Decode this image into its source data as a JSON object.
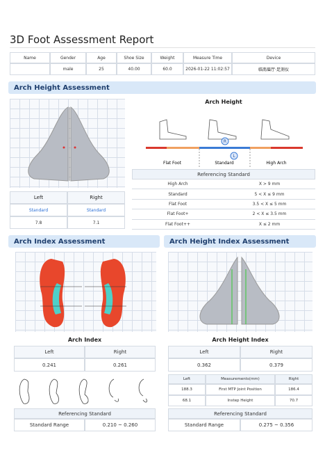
{
  "header": {
    "title": "3D Foot Assessment Report"
  },
  "info_table": {
    "columns": [
      "Name",
      "Gender",
      "Age",
      "Shoe Size",
      "Weight",
      "Measure Time",
      "Device"
    ],
    "row": [
      null,
      "male",
      "25",
      "40.00",
      "60.0",
      "2026-01-22 11:02:57",
      "临南眉厅·足测仪"
    ]
  },
  "arch_height": {
    "section": "Arch Height Assessment",
    "title": "Arch Height",
    "markers": [
      "R",
      "L"
    ],
    "categories": [
      "Flat Foot",
      "Standard",
      "High Arch"
    ],
    "table": {
      "headers": [
        "Left",
        "Right"
      ],
      "rows": [
        [
          "Standard",
          "Standard"
        ],
        [
          "7.8",
          "7.1"
        ]
      ]
    },
    "reference": {
      "title": "Referencing Standard",
      "rows": [
        [
          "High Arch",
          "X > 9 mm"
        ],
        [
          "Standard",
          "5 < X ≤ 9 mm"
        ],
        [
          "Flat Foot",
          "3.5 < X ≤ 5 mm"
        ],
        [
          "Flat Foot+",
          "2 < X ≤ 3.5 mm"
        ],
        [
          "Flat Foot++",
          "X ≤ 2 mm"
        ]
      ]
    }
  },
  "arch_index": {
    "section": "Arch Index Assessment",
    "title": "Arch Index",
    "table": {
      "headers": [
        "Left",
        "Right"
      ],
      "values": [
        "0.241",
        "0.261"
      ]
    },
    "reference": {
      "title": "Referencing Standard",
      "row": [
        "Standard Range",
        "0.210 ~ 0.260"
      ]
    }
  },
  "arch_height_index": {
    "section": "Arch Height Index Assessment",
    "title": "Arch Height Index",
    "table": {
      "headers": [
        "Left",
        "Right"
      ],
      "values": [
        "0.362",
        "0.379"
      ]
    },
    "measurements": {
      "headers": [
        "Left",
        "Measurements(mm)",
        "Right"
      ],
      "rows": [
        [
          "188.3",
          "First MTP Joint Position",
          "186.4"
        ],
        [
          "68.1",
          "Instep Height",
          "70.7"
        ]
      ]
    },
    "reference": {
      "title": "Referencing Standard",
      "row": [
        "Standard Range",
        "0.275 ~ 0.356"
      ]
    }
  }
}
